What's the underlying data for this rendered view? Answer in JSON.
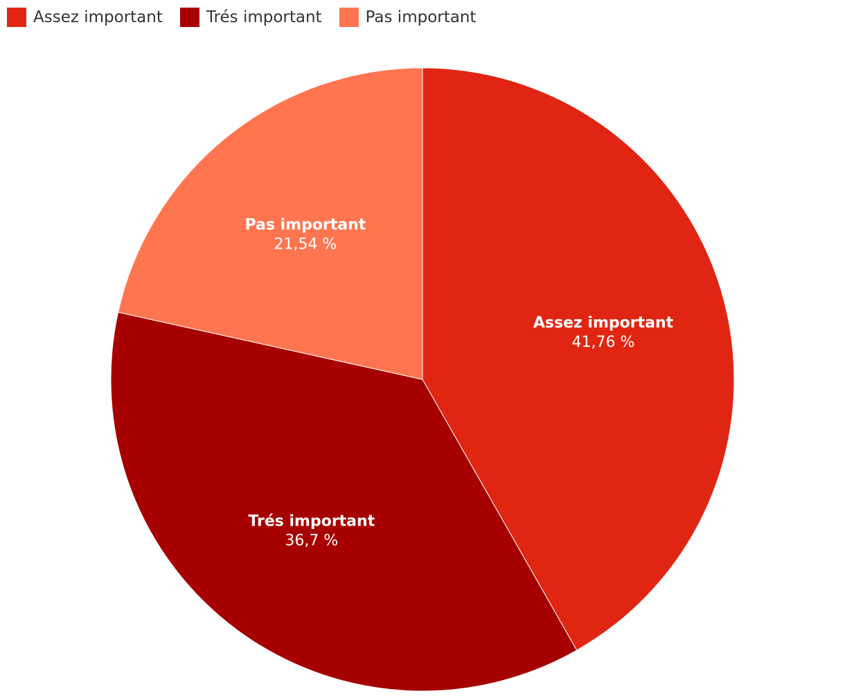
{
  "chart_data": {
    "type": "pie",
    "title": "",
    "legend_placement": "top-left",
    "start_angle_deg": 0,
    "direction": "clockwise",
    "slices": [
      {
        "label": "Assez important",
        "value": 41.76,
        "value_label": "41,76 %",
        "color": "#e02612"
      },
      {
        "label": "Trés important",
        "value": 36.7,
        "value_label": "36,7 %",
        "color": "#a60000"
      },
      {
        "label": "Pas important",
        "value": 21.54,
        "value_label": "21,54 %",
        "color": "#ff7550"
      }
    ]
  }
}
